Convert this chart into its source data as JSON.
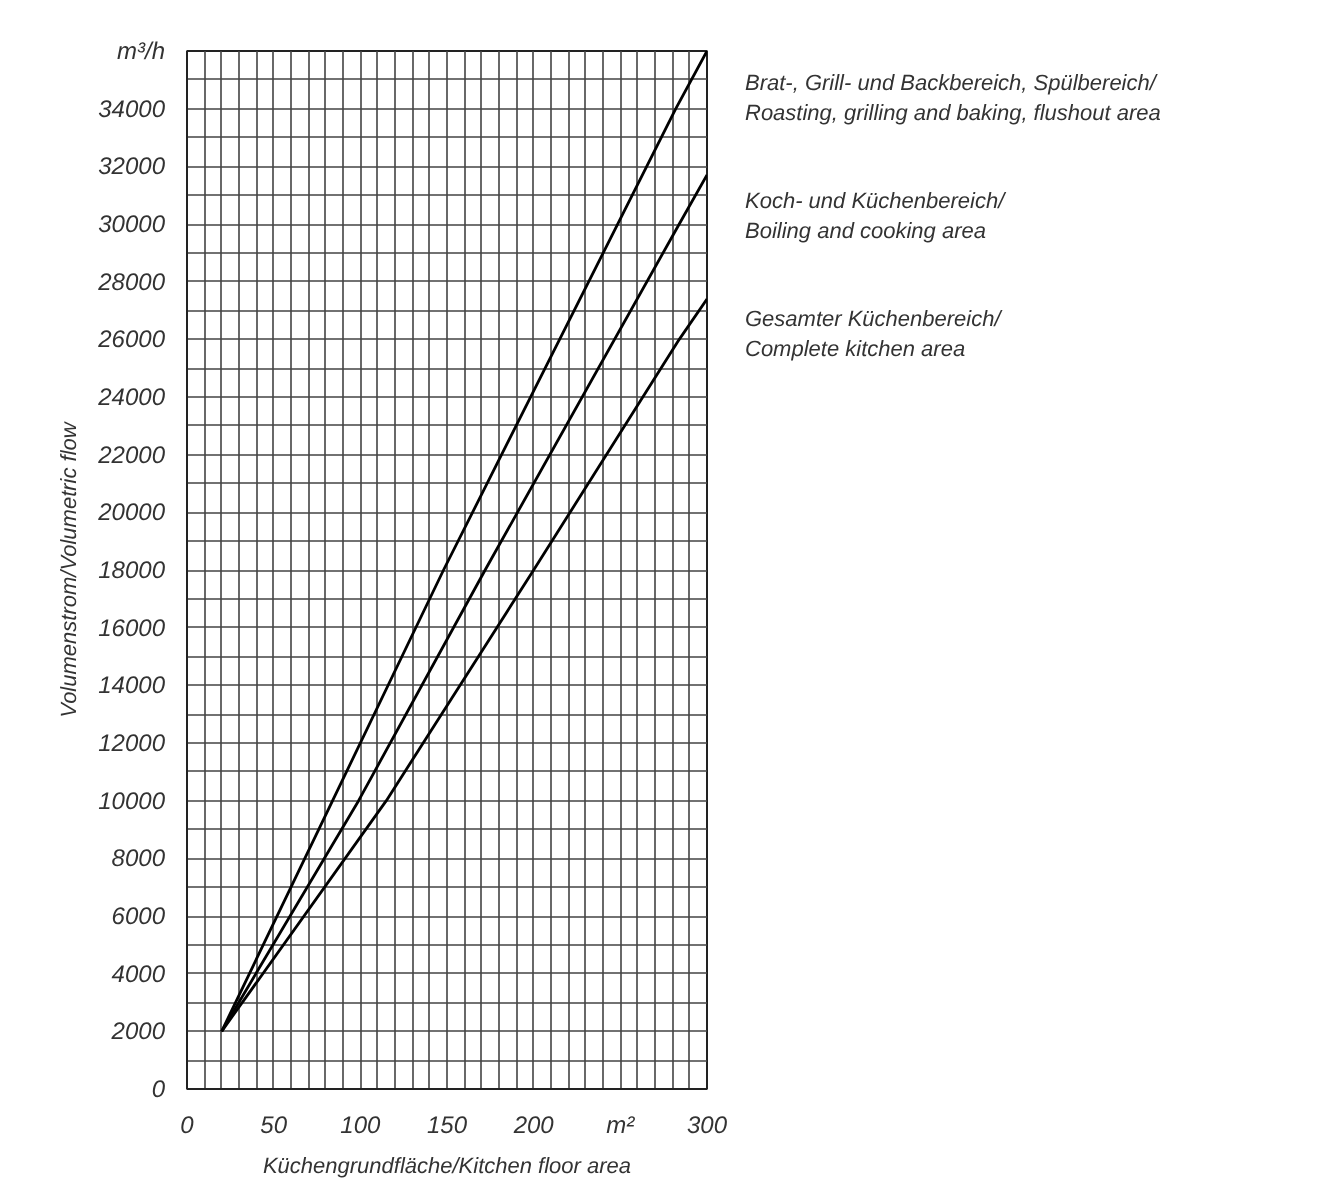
{
  "chart_data": {
    "type": "line",
    "xlabel": "Küchengrundfläche/Kitchen floor area",
    "ylabel": "Volumenstrom/Volumetric flow",
    "xlim": [
      0,
      300
    ],
    "ylim": [
      0,
      36000
    ],
    "xticks": [
      0,
      {
        "value": 10,
        "label": null
      },
      {
        "value": 20,
        "label": null
      },
      {
        "value": 30,
        "label": null
      },
      {
        "value": 40,
        "label": null
      },
      50,
      {
        "value": 60,
        "label": null
      },
      {
        "value": 70,
        "label": null
      },
      {
        "value": 80,
        "label": null
      },
      {
        "value": 90,
        "label": null
      },
      100,
      {
        "value": 110,
        "label": null
      },
      {
        "value": 120,
        "label": null
      },
      {
        "value": 130,
        "label": null
      },
      {
        "value": 140,
        "label": null
      },
      150,
      {
        "value": 160,
        "label": null
      },
      {
        "value": 170,
        "label": null
      },
      {
        "value": 180,
        "label": null
      },
      {
        "value": 190,
        "label": null
      },
      200,
      {
        "value": 210,
        "label": null
      },
      {
        "value": 220,
        "label": null
      },
      {
        "value": 230,
        "label": null
      },
      {
        "value": 240,
        "label": null
      },
      {
        "value": 250,
        "label": "m²"
      },
      {
        "value": 260,
        "label": null
      },
      {
        "value": 270,
        "label": null
      },
      {
        "value": 280,
        "label": null
      },
      {
        "value": 290,
        "label": null
      },
      300
    ],
    "yticks": [
      0,
      {
        "value": 1000,
        "label": null
      },
      2000,
      {
        "value": 3000,
        "label": null
      },
      4000,
      {
        "value": 5000,
        "label": null
      },
      6000,
      {
        "value": 7000,
        "label": null
      },
      8000,
      {
        "value": 9000,
        "label": null
      },
      10000,
      {
        "value": 11000,
        "label": null
      },
      12000,
      {
        "value": 13000,
        "label": null
      },
      14000,
      {
        "value": 15000,
        "label": null
      },
      16000,
      {
        "value": 17000,
        "label": null
      },
      18000,
      {
        "value": 19000,
        "label": null
      },
      20000,
      {
        "value": 21000,
        "label": null
      },
      22000,
      {
        "value": 23000,
        "label": null
      },
      24000,
      {
        "value": 25000,
        "label": null
      },
      26000,
      {
        "value": 27000,
        "label": null
      },
      28000,
      {
        "value": 29000,
        "label": null
      },
      30000,
      {
        "value": 31000,
        "label": null
      },
      32000,
      {
        "value": 33000,
        "label": null
      },
      34000,
      {
        "value": 35000,
        "label": null
      },
      {
        "value": 36000,
        "label": "m³/h"
      }
    ],
    "grid": true,
    "line_style": "solid",
    "series": [
      {
        "name": "Brat-, Grill- und Backbereich, Spülbereich/\nRoasting, grilling and baking, flushout area",
        "color": "#000000",
        "x": [
          20,
          84,
          148,
          282,
          300
        ],
        "values": [
          2000,
          10000,
          18000,
          34000,
          36000
        ]
      },
      {
        "name": "Koch- und Küchenbereich/\nBoiling and cooking area",
        "color": "#000000",
        "x": [
          20,
          99,
          172,
          284,
          300
        ],
        "values": [
          2000,
          10000,
          18000,
          30000,
          31700
        ]
      },
      {
        "name": "Gesamter Küchenbereich/\nComplete kitchen area",
        "color": "#000000",
        "x": [
          20,
          115,
          200,
          284,
          300
        ],
        "values": [
          2000,
          10000,
          18000,
          26000,
          27400
        ]
      }
    ]
  }
}
